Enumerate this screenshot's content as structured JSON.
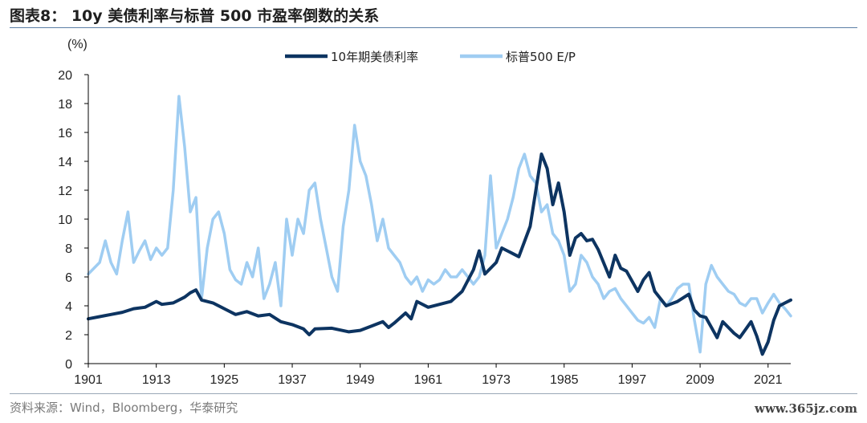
{
  "header": {
    "title": "图表8：  10y 美债利率与标普 500 市盈率倒数的关系"
  },
  "footer": {
    "source": "资料来源：Wind，Bloomberg，华泰研究",
    "watermark": "www.365jz.com"
  },
  "colors": {
    "treasury": "#0d3461",
    "ep": "#9fcdf2",
    "axis": "#000000"
  },
  "chart_data": {
    "type": "line",
    "ylabel": "(%)",
    "xlim": [
      1901,
      2025
    ],
    "ylim": [
      0,
      20
    ],
    "x_ticks": [
      "1901",
      "1913",
      "1925",
      "1937",
      "1949",
      "1961",
      "1973",
      "1985",
      "1997",
      "2009",
      "2021"
    ],
    "y_ticks": [
      "0",
      "2",
      "4",
      "6",
      "8",
      "10",
      "12",
      "14",
      "16",
      "18",
      "20"
    ],
    "legend_position": "top-center",
    "series": [
      {
        "name": "10年期美债利率",
        "points": [
          [
            1901,
            3.1
          ],
          [
            1903,
            3.25
          ],
          [
            1905,
            3.4
          ],
          [
            1907,
            3.55
          ],
          [
            1909,
            3.8
          ],
          [
            1911,
            3.9
          ],
          [
            1913,
            4.3
          ],
          [
            1914,
            4.1
          ],
          [
            1916,
            4.2
          ],
          [
            1918,
            4.6
          ],
          [
            1919,
            4.9
          ],
          [
            1920,
            5.1
          ],
          [
            1921,
            4.4
          ],
          [
            1923,
            4.2
          ],
          [
            1925,
            3.8
          ],
          [
            1927,
            3.4
          ],
          [
            1929,
            3.6
          ],
          [
            1931,
            3.3
          ],
          [
            1933,
            3.4
          ],
          [
            1935,
            2.9
          ],
          [
            1937,
            2.7
          ],
          [
            1939,
            2.4
          ],
          [
            1940,
            2.0
          ],
          [
            1941,
            2.4
          ],
          [
            1944,
            2.45
          ],
          [
            1947,
            2.2
          ],
          [
            1949,
            2.3
          ],
          [
            1951,
            2.6
          ],
          [
            1953,
            2.9
          ],
          [
            1954,
            2.5
          ],
          [
            1955,
            2.8
          ],
          [
            1957,
            3.5
          ],
          [
            1958,
            3.1
          ],
          [
            1959,
            4.3
          ],
          [
            1961,
            3.9
          ],
          [
            1963,
            4.1
          ],
          [
            1965,
            4.3
          ],
          [
            1967,
            5.0
          ],
          [
            1969,
            6.5
          ],
          [
            1970,
            7.8
          ],
          [
            1971,
            6.2
          ],
          [
            1973,
            7.0
          ],
          [
            1974,
            8.0
          ],
          [
            1976,
            7.6
          ],
          [
            1977,
            7.4
          ],
          [
            1979,
            9.5
          ],
          [
            1980,
            12.0
          ],
          [
            1981,
            14.5
          ],
          [
            1982,
            13.5
          ],
          [
            1983,
            11.0
          ],
          [
            1984,
            12.5
          ],
          [
            1985,
            10.5
          ],
          [
            1986,
            7.5
          ],
          [
            1987,
            8.7
          ],
          [
            1988,
            9.0
          ],
          [
            1989,
            8.5
          ],
          [
            1990,
            8.6
          ],
          [
            1991,
            7.9
          ],
          [
            1993,
            6.0
          ],
          [
            1994,
            7.5
          ],
          [
            1995,
            6.6
          ],
          [
            1996,
            6.4
          ],
          [
            1998,
            5.0
          ],
          [
            1999,
            5.8
          ],
          [
            2000,
            6.3
          ],
          [
            2001,
            5.0
          ],
          [
            2003,
            4.0
          ],
          [
            2005,
            4.3
          ],
          [
            2007,
            4.8
          ],
          [
            2008,
            3.7
          ],
          [
            2009,
            3.3
          ],
          [
            2010,
            3.2
          ],
          [
            2012,
            1.8
          ],
          [
            2013,
            2.9
          ],
          [
            2014,
            2.5
          ],
          [
            2015,
            2.1
          ],
          [
            2016,
            1.8
          ],
          [
            2018,
            2.9
          ],
          [
            2019,
            1.9
          ],
          [
            2020,
            0.65
          ],
          [
            2021,
            1.5
          ],
          [
            2022,
            3.0
          ],
          [
            2023,
            4.0
          ],
          [
            2024,
            4.2
          ],
          [
            2025,
            4.4
          ]
        ]
      },
      {
        "name": "标普500 E/P",
        "points": [
          [
            1901,
            6.2
          ],
          [
            1903,
            7.0
          ],
          [
            1904,
            8.5
          ],
          [
            1905,
            7.0
          ],
          [
            1906,
            6.2
          ],
          [
            1907,
            8.5
          ],
          [
            1908,
            10.5
          ],
          [
            1909,
            7.0
          ],
          [
            1910,
            7.8
          ],
          [
            1911,
            8.5
          ],
          [
            1912,
            7.2
          ],
          [
            1913,
            8.0
          ],
          [
            1914,
            7.5
          ],
          [
            1915,
            8.0
          ],
          [
            1916,
            12.0
          ],
          [
            1917,
            18.5
          ],
          [
            1918,
            15.0
          ],
          [
            1919,
            10.5
          ],
          [
            1920,
            11.5
          ],
          [
            1921,
            4.5
          ],
          [
            1922,
            8.0
          ],
          [
            1923,
            10.0
          ],
          [
            1924,
            10.5
          ],
          [
            1925,
            9.0
          ],
          [
            1926,
            6.5
          ],
          [
            1927,
            5.8
          ],
          [
            1928,
            5.5
          ],
          [
            1929,
            7.0
          ],
          [
            1930,
            6.0
          ],
          [
            1931,
            8.0
          ],
          [
            1932,
            4.5
          ],
          [
            1933,
            5.5
          ],
          [
            1934,
            7.0
          ],
          [
            1935,
            4.0
          ],
          [
            1936,
            10.0
          ],
          [
            1937,
            7.5
          ],
          [
            1938,
            10.0
          ],
          [
            1939,
            9.0
          ],
          [
            1940,
            12.0
          ],
          [
            1941,
            12.5
          ],
          [
            1942,
            10.0
          ],
          [
            1943,
            8.0
          ],
          [
            1944,
            6.0
          ],
          [
            1945,
            5.0
          ],
          [
            1946,
            9.5
          ],
          [
            1947,
            12.0
          ],
          [
            1948,
            16.5
          ],
          [
            1949,
            14.0
          ],
          [
            1950,
            13.0
          ],
          [
            1951,
            11.0
          ],
          [
            1952,
            8.5
          ],
          [
            1953,
            10.0
          ],
          [
            1954,
            8.0
          ],
          [
            1955,
            7.5
          ],
          [
            1956,
            7.0
          ],
          [
            1957,
            6.0
          ],
          [
            1958,
            5.5
          ],
          [
            1959,
            6.0
          ],
          [
            1960,
            5.0
          ],
          [
            1961,
            5.8
          ],
          [
            1962,
            5.5
          ],
          [
            1963,
            5.8
          ],
          [
            1964,
            6.5
          ],
          [
            1965,
            6.0
          ],
          [
            1966,
            6.0
          ],
          [
            1967,
            6.5
          ],
          [
            1968,
            6.0
          ],
          [
            1969,
            5.5
          ],
          [
            1970,
            6.0
          ],
          [
            1971,
            7.5
          ],
          [
            1972,
            13.0
          ],
          [
            1973,
            8.0
          ],
          [
            1974,
            9.0
          ],
          [
            1975,
            10.0
          ],
          [
            1976,
            11.5
          ],
          [
            1977,
            13.5
          ],
          [
            1978,
            14.5
          ],
          [
            1979,
            13.0
          ],
          [
            1980,
            12.5
          ],
          [
            1981,
            10.5
          ],
          [
            1982,
            11.0
          ],
          [
            1983,
            9.0
          ],
          [
            1984,
            8.5
          ],
          [
            1985,
            7.5
          ],
          [
            1986,
            5.0
          ],
          [
            1987,
            5.5
          ],
          [
            1988,
            7.5
          ],
          [
            1989,
            7.0
          ],
          [
            1990,
            6.0
          ],
          [
            1991,
            5.5
          ],
          [
            1992,
            4.5
          ],
          [
            1993,
            5.0
          ],
          [
            1994,
            5.2
          ],
          [
            1995,
            4.5
          ],
          [
            1996,
            4.0
          ],
          [
            1997,
            3.5
          ],
          [
            1998,
            3.0
          ],
          [
            1999,
            2.8
          ],
          [
            2000,
            3.2
          ],
          [
            2001,
            2.5
          ],
          [
            2002,
            4.5
          ],
          [
            2003,
            4.0
          ],
          [
            2004,
            4.5
          ],
          [
            2005,
            5.2
          ],
          [
            2006,
            5.5
          ],
          [
            2007,
            5.5
          ],
          [
            2008,
            3.0
          ],
          [
            2009,
            0.8
          ],
          [
            2010,
            5.5
          ],
          [
            2011,
            6.8
          ],
          [
            2012,
            6.0
          ],
          [
            2013,
            5.5
          ],
          [
            2014,
            5.0
          ],
          [
            2015,
            4.8
          ],
          [
            2016,
            4.2
          ],
          [
            2017,
            4.0
          ],
          [
            2018,
            4.5
          ],
          [
            2019,
            4.5
          ],
          [
            2020,
            3.5
          ],
          [
            2021,
            4.2
          ],
          [
            2022,
            4.8
          ],
          [
            2023,
            4.2
          ],
          [
            2024,
            3.8
          ],
          [
            2025,
            3.3
          ]
        ]
      }
    ]
  }
}
